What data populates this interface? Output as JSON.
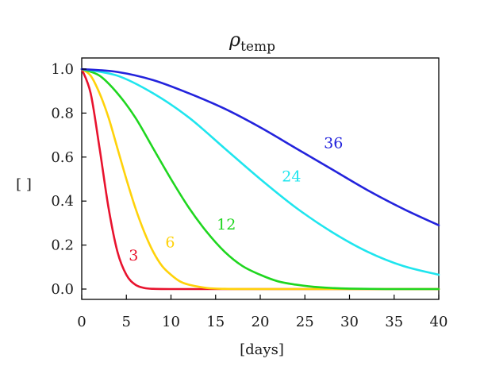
{
  "chart_data": {
    "type": "line",
    "title": {
      "main": "ρ",
      "subscript": "temp"
    },
    "xlabel": "[days]",
    "ylabel": "[ ]",
    "xlim": [
      0,
      40
    ],
    "ylim": [
      0,
      1
    ],
    "x_ticks": [
      0,
      5,
      10,
      15,
      20,
      25,
      30,
      35,
      40
    ],
    "y_ticks": [
      "0.0",
      "0.2",
      "0.4",
      "0.6",
      "0.8",
      "1.0"
    ],
    "grid": false,
    "legend": "none",
    "series": [
      {
        "name": "3",
        "color": "#e8132e",
        "x": [
          0,
          1,
          2,
          3,
          4,
          5,
          6,
          7,
          8,
          10,
          15,
          40
        ],
        "y": [
          1.0,
          0.89,
          0.64,
          0.37,
          0.17,
          0.065,
          0.02,
          0.005,
          0.001,
          0.0,
          0.0,
          0.0
        ]
      },
      {
        "name": "6",
        "color": "#ffd20a",
        "x": [
          0,
          1,
          2,
          3,
          4,
          5,
          6,
          7,
          8,
          9,
          10,
          11,
          12,
          14,
          16,
          20,
          40
        ],
        "y": [
          1.0,
          0.97,
          0.89,
          0.78,
          0.64,
          0.5,
          0.37,
          0.26,
          0.17,
          0.105,
          0.065,
          0.035,
          0.02,
          0.005,
          0.001,
          0.0,
          0.0
        ]
      },
      {
        "name": "12",
        "color": "#1fd61f",
        "x": [
          0,
          2,
          4,
          6,
          8,
          10,
          12,
          14,
          16,
          18,
          20,
          22,
          24,
          26,
          28,
          30,
          34,
          40
        ],
        "y": [
          1.0,
          0.97,
          0.89,
          0.78,
          0.64,
          0.5,
          0.37,
          0.26,
          0.17,
          0.105,
          0.065,
          0.035,
          0.02,
          0.01,
          0.005,
          0.002,
          0.0,
          0.0
        ]
      },
      {
        "name": "24",
        "color": "#1fe5ee",
        "x": [
          0,
          4,
          8,
          12,
          16,
          20,
          24,
          28,
          32,
          36,
          40
        ],
        "y": [
          1.0,
          0.97,
          0.89,
          0.78,
          0.64,
          0.5,
          0.37,
          0.26,
          0.17,
          0.105,
          0.065
        ]
      },
      {
        "name": "36",
        "color": "#2323dc",
        "x": [
          0,
          4,
          8,
          12,
          16,
          20,
          24,
          28,
          32,
          36,
          40
        ],
        "y": [
          1.0,
          0.987,
          0.95,
          0.89,
          0.82,
          0.735,
          0.64,
          0.545,
          0.45,
          0.365,
          0.29
        ]
      }
    ],
    "annotations": [
      {
        "text": "3",
        "x": 5.8,
        "y": 0.13,
        "color": "#e8132e"
      },
      {
        "text": "6",
        "x": 9.9,
        "y": 0.19,
        "color": "#ffd20a"
      },
      {
        "text": "12",
        "x": 16.2,
        "y": 0.27,
        "color": "#1fd61f"
      },
      {
        "text": "24",
        "x": 23.5,
        "y": 0.49,
        "color": "#1fe5ee"
      },
      {
        "text": "36",
        "x": 28.2,
        "y": 0.64,
        "color": "#2323dc"
      }
    ]
  }
}
